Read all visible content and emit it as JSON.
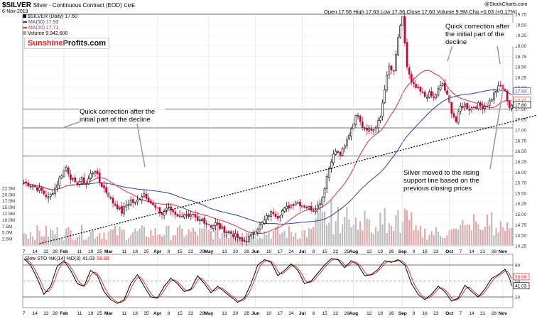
{
  "header": {
    "symbol": "$SILVER",
    "contract": "Silver - Continuous Contract (EOD)",
    "exchange": "CME",
    "date": "6-Nov-2019",
    "brand": "@StockCharts.com",
    "ohlc": "Open 17.56  High 17.63  Low 17.36  Close 17.60  Volume 9.9M  Chg +0.03 (+0.17%)",
    "legend_main": "$SILVER (Daily) 17.60",
    "legend_ma50": "MA(50) 17.93",
    "legend_ma20": "MA(20) 17.71",
    "legend_vol": "Volume 9,942,600"
  },
  "logo": {
    "part1": "Sunshine",
    "part2": "Profits.com"
  },
  "colors": {
    "up": "#000000",
    "down": "#cc0033",
    "ma20": "#cc3344",
    "ma50": "#2f3a96",
    "volume": "#b8b8b8",
    "stoch_k": "#000000",
    "stoch_d": "#dd2222"
  },
  "annotations": {
    "left": "Quick correction after the initial part of the decline",
    "right": "Quick correction after the initial part of the decline",
    "support": "Silver moved to the rising support line based on the previous closing prices"
  },
  "chart_data": [
    {
      "type": "candlestick",
      "title": "$SILVER Silver - Continuous Contract (EOD)",
      "ylim": [
        14.25,
        19.75
      ],
      "y_ticks": [
        14.25,
        14.5,
        14.75,
        15.0,
        15.25,
        15.5,
        15.75,
        16.0,
        16.25,
        16.5,
        16.75,
        17.0,
        17.25,
        17.5,
        17.75,
        18.0,
        18.25,
        18.5,
        18.75,
        19.0,
        19.25,
        19.5,
        19.75
      ],
      "price_labels": [
        "17.93",
        "17.71",
        "17.60"
      ],
      "volume_ticks": [
        "22.5M",
        "20.0M",
        "17.5M",
        "15.0M",
        "12.5M",
        "10.0M",
        "7.5M",
        "5.0M",
        "2.5M"
      ],
      "volume_max": 25,
      "horizontal_lines": [
        19.75,
        17.5,
        17.05,
        16.38
      ],
      "support_line": {
        "from": [
          7,
          14.3
        ],
        "to": [
          230,
          17.35
        ]
      },
      "x_labels": [
        {
          "label": "7",
          "bar": 0,
          "major": false
        },
        {
          "label": "14",
          "bar": 5,
          "major": false
        },
        {
          "label": "22",
          "bar": 10,
          "major": false
        },
        {
          "label": "28",
          "bar": 14,
          "major": false
        },
        {
          "label": "Feb",
          "bar": 18,
          "major": true
        },
        {
          "label": "11",
          "bar": 25,
          "major": false
        },
        {
          "label": "19",
          "bar": 30,
          "major": false
        },
        {
          "label": "25",
          "bar": 34,
          "major": false
        },
        {
          "label": "Mar",
          "bar": 38,
          "major": true
        },
        {
          "label": "11",
          "bar": 45,
          "major": false
        },
        {
          "label": "18",
          "bar": 50,
          "major": false
        },
        {
          "label": "25",
          "bar": 55,
          "major": false
        },
        {
          "label": "Apr",
          "bar": 60,
          "major": true
        },
        {
          "label": "8",
          "bar": 65,
          "major": false
        },
        {
          "label": "15",
          "bar": 70,
          "major": false
        },
        {
          "label": "22",
          "bar": 75,
          "major": false
        },
        {
          "label": "29",
          "bar": 80,
          "major": false
        },
        {
          "label": "May",
          "bar": 83,
          "major": true
        },
        {
          "label": "13",
          "bar": 90,
          "major": false
        },
        {
          "label": "20",
          "bar": 95,
          "major": false
        },
        {
          "label": "28",
          "bar": 100,
          "major": false
        },
        {
          "label": "Jun",
          "bar": 104,
          "major": true
        },
        {
          "label": "10",
          "bar": 110,
          "major": false
        },
        {
          "label": "17",
          "bar": 115,
          "major": false
        },
        {
          "label": "24",
          "bar": 120,
          "major": false
        },
        {
          "label": "Jul",
          "bar": 125,
          "major": true
        },
        {
          "label": "8",
          "bar": 130,
          "major": false
        },
        {
          "label": "15",
          "bar": 135,
          "major": false
        },
        {
          "label": "22",
          "bar": 140,
          "major": false
        },
        {
          "label": "29",
          "bar": 145,
          "major": false
        },
        {
          "label": "Aug",
          "bar": 148,
          "major": true
        },
        {
          "label": "12",
          "bar": 155,
          "major": false
        },
        {
          "label": "19",
          "bar": 160,
          "major": false
        },
        {
          "label": "26",
          "bar": 165,
          "major": false
        },
        {
          "label": "Sep",
          "bar": 170,
          "major": true
        },
        {
          "label": "9",
          "bar": 175,
          "major": false
        },
        {
          "label": "16",
          "bar": 180,
          "major": false
        },
        {
          "label": "23",
          "bar": 185,
          "major": false
        },
        {
          "label": "Oct",
          "bar": 191,
          "major": true
        },
        {
          "label": "7",
          "bar": 196,
          "major": false
        },
        {
          "label": "14",
          "bar": 201,
          "major": false
        },
        {
          "label": "21",
          "bar": 206,
          "major": false
        },
        {
          "label": "28",
          "bar": 211,
          "major": false
        },
        {
          "label": "Nov",
          "bar": 215,
          "major": true
        }
      ],
      "anchors": [
        [
          0,
          15.75
        ],
        [
          4,
          15.68
        ],
        [
          8,
          15.55
        ],
        [
          11,
          15.38
        ],
        [
          14,
          15.62
        ],
        [
          17,
          15.95
        ],
        [
          19,
          16.12
        ],
        [
          21,
          15.88
        ],
        [
          23,
          15.72
        ],
        [
          26,
          15.82
        ],
        [
          28,
          15.72
        ],
        [
          30,
          15.95
        ],
        [
          32,
          16.05
        ],
        [
          34,
          15.75
        ],
        [
          36,
          15.62
        ],
        [
          38,
          15.45
        ],
        [
          40,
          15.28
        ],
        [
          42,
          15.18
        ],
        [
          44,
          15.05
        ],
        [
          46,
          15.22
        ],
        [
          48,
          15.32
        ],
        [
          50,
          15.25
        ],
        [
          52,
          15.4
        ],
        [
          54,
          15.5
        ],
        [
          56,
          15.35
        ],
        [
          58,
          15.2
        ],
        [
          60,
          15.1
        ],
        [
          62,
          15.0
        ],
        [
          64,
          15.15
        ],
        [
          66,
          15.1
        ],
        [
          68,
          15.02
        ],
        [
          70,
          14.95
        ],
        [
          72,
          15.02
        ],
        [
          74,
          14.9
        ],
        [
          76,
          14.95
        ],
        [
          78,
          14.82
        ],
        [
          80,
          14.88
        ],
        [
          82,
          14.8
        ],
        [
          84,
          14.72
        ],
        [
          86,
          14.78
        ],
        [
          88,
          14.68
        ],
        [
          90,
          14.62
        ],
        [
          92,
          14.58
        ],
        [
          94,
          14.52
        ],
        [
          96,
          14.45
        ],
        [
          98,
          14.35
        ],
        [
          100,
          14.4
        ],
        [
          102,
          14.48
        ],
        [
          104,
          14.65
        ],
        [
          106,
          14.72
        ],
        [
          108,
          14.85
        ],
        [
          110,
          15.0
        ],
        [
          112,
          15.05
        ],
        [
          114,
          14.95
        ],
        [
          116,
          15.08
        ],
        [
          118,
          15.15
        ],
        [
          120,
          15.22
        ],
        [
          122,
          15.3
        ],
        [
          124,
          15.25
        ],
        [
          126,
          15.2
        ],
        [
          128,
          15.15
        ],
        [
          130,
          15.12
        ],
        [
          132,
          15.2
        ],
        [
          134,
          15.4
        ],
        [
          136,
          15.9
        ],
        [
          138,
          16.3
        ],
        [
          140,
          16.5
        ],
        [
          142,
          16.42
        ],
        [
          144,
          16.6
        ],
        [
          146,
          16.9
        ],
        [
          148,
          17.2
        ],
        [
          150,
          17.4
        ],
        [
          152,
          17.1
        ],
        [
          154,
          17.05
        ],
        [
          156,
          17.0
        ],
        [
          158,
          17.05
        ],
        [
          160,
          17.3
        ],
        [
          162,
          18.0
        ],
        [
          164,
          18.5
        ],
        [
          166,
          18.35
        ],
        [
          168,
          19.2
        ],
        [
          170,
          19.65
        ],
        [
          172,
          18.5
        ],
        [
          174,
          18.1
        ],
        [
          176,
          18.0
        ],
        [
          178,
          17.9
        ],
        [
          180,
          17.8
        ],
        [
          182,
          17.85
        ],
        [
          184,
          17.75
        ],
        [
          186,
          17.95
        ],
        [
          188,
          18.1
        ],
        [
          190,
          17.8
        ],
        [
          192,
          17.45
        ],
        [
          194,
          17.2
        ],
        [
          196,
          17.55
        ],
        [
          198,
          17.6
        ],
        [
          200,
          17.5
        ],
        [
          202,
          17.55
        ],
        [
          204,
          17.6
        ],
        [
          206,
          17.55
        ],
        [
          208,
          17.6
        ],
        [
          210,
          17.75
        ],
        [
          212,
          17.95
        ],
        [
          214,
          18.05
        ],
        [
          216,
          17.9
        ],
        [
          218,
          17.55
        ],
        [
          219,
          17.6
        ]
      ],
      "series": [
        {
          "name": "MA(50)",
          "last": 17.93
        },
        {
          "name": "MA(20)",
          "last": 17.71
        },
        {
          "name": "$SILVER (Daily)",
          "last": 17.6
        }
      ]
    },
    {
      "type": "line",
      "title": "Slow STO %K(14) %D(3)",
      "legend_label": "Slow STO %K(14) %D(3)",
      "k_value": "41.03",
      "d_value": "58.08",
      "ylim": [
        0,
        100
      ],
      "y_ticks": [
        "80",
        "50",
        "20"
      ],
      "reference_lines": [
        80,
        50,
        20
      ],
      "k_anchors": [
        [
          0,
          92
        ],
        [
          3,
          80
        ],
        [
          6,
          55
        ],
        [
          9,
          25
        ],
        [
          12,
          40
        ],
        [
          15,
          78
        ],
        [
          18,
          88
        ],
        [
          21,
          70
        ],
        [
          24,
          45
        ],
        [
          27,
          40
        ],
        [
          30,
          70
        ],
        [
          33,
          60
        ],
        [
          36,
          30
        ],
        [
          39,
          15
        ],
        [
          42,
          8
        ],
        [
          45,
          15
        ],
        [
          48,
          45
        ],
        [
          51,
          62
        ],
        [
          54,
          40
        ],
        [
          57,
          20
        ],
        [
          60,
          18
        ],
        [
          63,
          40
        ],
        [
          66,
          55
        ],
        [
          69,
          45
        ],
        [
          72,
          30
        ],
        [
          75,
          35
        ],
        [
          78,
          60
        ],
        [
          81,
          45
        ],
        [
          84,
          28
        ],
        [
          87,
          40
        ],
        [
          90,
          30
        ],
        [
          93,
          20
        ],
        [
          96,
          10
        ],
        [
          99,
          18
        ],
        [
          102,
          45
        ],
        [
          105,
          80
        ],
        [
          108,
          90
        ],
        [
          111,
          85
        ],
        [
          114,
          60
        ],
        [
          117,
          70
        ],
        [
          120,
          82
        ],
        [
          123,
          70
        ],
        [
          126,
          45
        ],
        [
          129,
          50
        ],
        [
          132,
          65
        ],
        [
          135,
          80
        ],
        [
          138,
          92
        ],
        [
          141,
          90
        ],
        [
          144,
          75
        ],
        [
          147,
          88
        ],
        [
          150,
          80
        ],
        [
          153,
          60
        ],
        [
          156,
          62
        ],
        [
          159,
          72
        ],
        [
          162,
          88
        ],
        [
          165,
          85
        ],
        [
          168,
          90
        ],
        [
          171,
          80
        ],
        [
          174,
          45
        ],
        [
          177,
          25
        ],
        [
          180,
          15
        ],
        [
          183,
          25
        ],
        [
          186,
          40
        ],
        [
          189,
          30
        ],
        [
          192,
          12
        ],
        [
          195,
          18
        ],
        [
          198,
          42
        ],
        [
          201,
          30
        ],
        [
          204,
          20
        ],
        [
          207,
          35
        ],
        [
          210,
          55
        ],
        [
          213,
          62
        ],
        [
          216,
          72
        ],
        [
          218,
          55
        ],
        [
          219,
          41
        ]
      ]
    }
  ]
}
